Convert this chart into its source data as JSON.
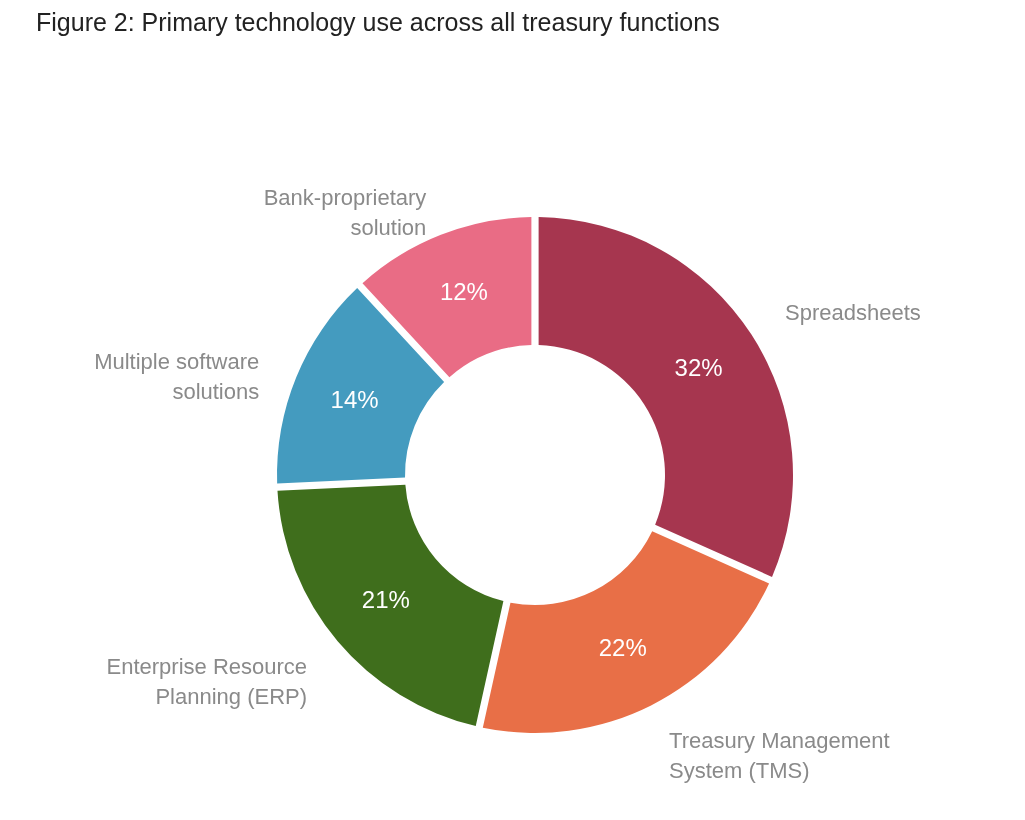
{
  "chart_data": {
    "type": "donut",
    "title": "Figure 2: Primary technology use across all treasury functions",
    "categories": [
      "Spreadsheets",
      "Treasury Management System (TMS)",
      "Enterprise Resource Planning (ERP)",
      "Multiple software solutions",
      "Bank-proprietary solution"
    ],
    "values": [
      32,
      22,
      21,
      14,
      12
    ],
    "colors": [
      "#a6364f",
      "#e86f47",
      "#3f6e1c",
      "#449bbf",
      "#e96c85"
    ],
    "value_labels": [
      "32%",
      "22%",
      "21%",
      "14%",
      "12%"
    ],
    "legend": false
  }
}
